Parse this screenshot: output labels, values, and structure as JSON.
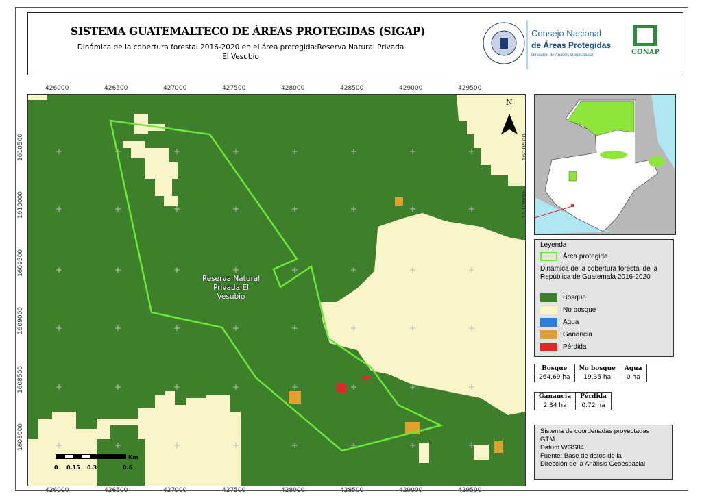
{
  "header": {
    "title": "SISTEMA GUATEMALTECO DE ÁREAS PROTEGIDAS  (SIGAP)",
    "subtitle": "Dinámica de la cobertura forestal 2016-2020 en el área protegida:Reserva Natural Privada El Vesubio",
    "logo_gov": "GOBIERNO DE LA REPÚBLICA · GUATEMALA",
    "logo_conap_line1": "Consejo Nacional",
    "logo_conap_line2": "de Áreas Protegidas",
    "logo_conap_line3": "Dirección de Análisis Geoespacial",
    "logo_conap_badge": "CONAP"
  },
  "map": {
    "x_ticks": [
      "426000",
      "426500",
      "427000",
      "427500",
      "428000",
      "428500",
      "429000",
      "429500"
    ],
    "y_ticks": [
      "1610500",
      "1610000",
      "1609500",
      "1609000",
      "1608500",
      "1608000"
    ],
    "area_label": "Reserva Natural Privada El Vesubio",
    "north_label": "N",
    "scale": {
      "labels": [
        "0",
        "0.15",
        "0.3",
        "0.6"
      ],
      "unit": "Km"
    },
    "colors": {
      "bosque": "#3d7f2b",
      "no_bosque": "#f8f6c9",
      "agua": "#2a7de1",
      "ganancia": "#e0a02c",
      "perdida": "#e0272b",
      "area": "#6be83a"
    }
  },
  "inset": {
    "y_ticks": [
      "1610500",
      "1610000"
    ]
  },
  "legend": {
    "title": "Leyenda",
    "area_label": "Área protegida",
    "section": "Dinámica de la cobertura forestal de la República de Guatemala 2016-2020",
    "items": [
      {
        "label": "Bosque",
        "color": "#3d7f2b"
      },
      {
        "label": "No bosque",
        "color": "#f8f6c9"
      },
      {
        "label": "Agua",
        "color": "#2a7de1"
      },
      {
        "label": "Ganancia",
        "color": "#e0a02c"
      },
      {
        "label": "Pérdida",
        "color": "#e0272b"
      }
    ]
  },
  "stats1": {
    "headers": [
      "Bosque",
      "No bosque",
      "Agua"
    ],
    "values": [
      "264.69 ha",
      "19.35 ha",
      "0 ha"
    ]
  },
  "stats2": {
    "headers": [
      "Ganancia",
      "Pérdida"
    ],
    "values": [
      "2.34 ha",
      "0.72 ha"
    ]
  },
  "info": {
    "lines": [
      "Sistema de coordenadas proyectadas",
      "GTM",
      "Datum WGS84",
      "Fuente: Base de datos de la",
      "Dirección de la Análisis Geoespacial"
    ]
  }
}
